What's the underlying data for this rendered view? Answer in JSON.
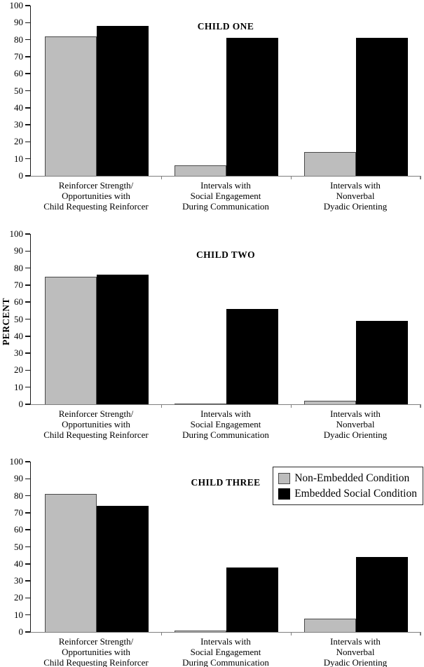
{
  "chart_data": {
    "type": "bar",
    "title": "",
    "xlabel": "",
    "ylabel": "PERCENT",
    "ylim": [
      0,
      100
    ],
    "yticks": [
      0,
      10,
      20,
      30,
      40,
      50,
      60,
      70,
      80,
      90,
      100
    ],
    "grid": false,
    "legend_position": "top-right of third panel",
    "categories": [
      [
        "Reinforcer Strength/",
        "Opportunities with",
        "Child Requesting Reinforcer"
      ],
      [
        "Intervals with",
        "Social Engagement",
        "During Communication"
      ],
      [
        "Intervals with",
        "Nonverbal",
        "Dyadic Orienting"
      ]
    ],
    "legend": [
      {
        "label": "Non-Embedded Condition",
        "color": "#bdbdbd"
      },
      {
        "label": "Embedded Social Condition",
        "color": "#000000"
      }
    ],
    "panels": [
      {
        "title": "CHILD ONE",
        "series": [
          {
            "name": "Non-Embedded Condition",
            "values": [
              82,
              6,
              14
            ]
          },
          {
            "name": "Embedded Social Condition",
            "values": [
              88,
              81,
              81
            ]
          }
        ]
      },
      {
        "title": "CHILD TWO",
        "series": [
          {
            "name": "Non-Embedded Condition",
            "values": [
              75,
              0.5,
              2
            ]
          },
          {
            "name": "Embedded Social Condition",
            "values": [
              76,
              56,
              49
            ]
          }
        ]
      },
      {
        "title": "CHILD THREE",
        "series": [
          {
            "name": "Non-Embedded Condition",
            "values": [
              81,
              1,
              8
            ]
          },
          {
            "name": "Embedded Social Condition",
            "values": [
              74,
              38,
              44
            ]
          }
        ],
        "has_legend": true
      }
    ],
    "colors": {
      "non_embedded": "#bdbdbd",
      "embedded": "#000000"
    }
  }
}
